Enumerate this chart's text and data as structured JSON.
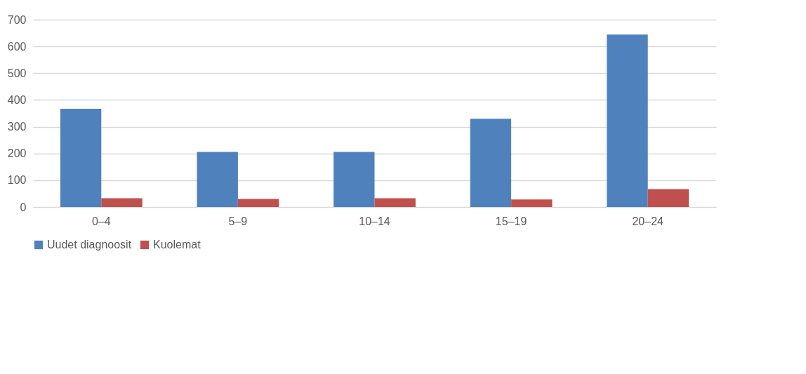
{
  "chart_data": {
    "type": "bar",
    "categories": [
      "0–4",
      "5–9",
      "10–14",
      "15–19",
      "20–24"
    ],
    "series": [
      {
        "name": "Uudet diagnoosit",
        "color": "#4f81bd",
        "values": [
          367,
          206,
          206,
          330,
          644
        ]
      },
      {
        "name": "Kuolemat",
        "color": "#c0504d",
        "values": [
          33,
          30,
          33,
          28,
          67
        ]
      }
    ],
    "ylim": [
      0,
      700
    ],
    "yticks": [
      0,
      100,
      200,
      300,
      400,
      500,
      600,
      700
    ],
    "grid": "y",
    "legend": "bottom"
  }
}
